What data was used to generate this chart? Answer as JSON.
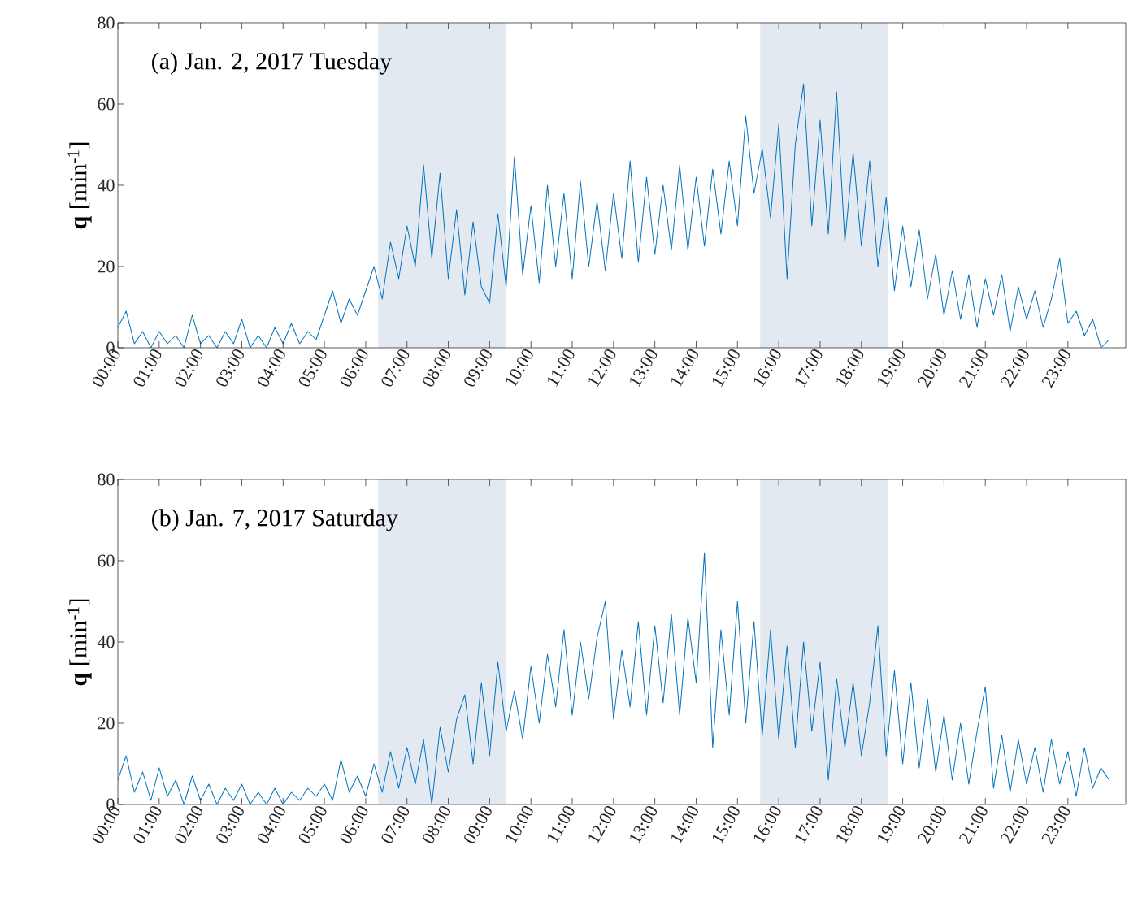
{
  "chart_data": [
    {
      "type": "line",
      "title": "(a) Jan. 2, 2017 Tuesday",
      "ylabel": "**q** [min$^{-1}$]",
      "xlim": [
        0,
        24.4
      ],
      "ylim": [
        0,
        80
      ],
      "yticks": [
        0,
        20,
        40,
        60,
        80
      ],
      "xticks": [
        {
          "value": 0,
          "label": "00:00"
        },
        {
          "value": 1,
          "label": "01:00"
        },
        {
          "value": 2,
          "label": "02:00"
        },
        {
          "value": 3,
          "label": "03:00"
        },
        {
          "value": 4,
          "label": "04:00"
        },
        {
          "value": 5,
          "label": "05:00"
        },
        {
          "value": 6,
          "label": "06:00"
        },
        {
          "value": 7,
          "label": "07:00"
        },
        {
          "value": 8,
          "label": "08:00"
        },
        {
          "value": 9,
          "label": "09:00"
        },
        {
          "value": 10,
          "label": "10:00"
        },
        {
          "value": 11,
          "label": "11:00"
        },
        {
          "value": 12,
          "label": "12:00"
        },
        {
          "value": 13,
          "label": "13:00"
        },
        {
          "value": 14,
          "label": "14:00"
        },
        {
          "value": 15,
          "label": "15:00"
        },
        {
          "value": 16,
          "label": "16:00"
        },
        {
          "value": 17,
          "label": "17:00"
        },
        {
          "value": 18,
          "label": "18:00"
        },
        {
          "value": 19,
          "label": "19:00"
        },
        {
          "value": 20,
          "label": "20:00"
        },
        {
          "value": 21,
          "label": "21:00"
        },
        {
          "value": 22,
          "label": "22:00"
        },
        {
          "value": 23,
          "label": "23:00"
        }
      ],
      "bands": [
        {
          "axis": "x",
          "from": 6.3,
          "to": 9.4,
          "color": "#e3e9f1"
        },
        {
          "axis": "x",
          "from": 15.55,
          "to": 18.65,
          "color": "#e3e9f1"
        }
      ],
      "x": [
        0,
        0.2,
        0.4,
        0.6,
        0.8,
        1,
        1.2,
        1.4,
        1.6,
        1.8,
        2,
        2.2,
        2.4,
        2.6,
        2.8,
        3,
        3.2,
        3.4,
        3.6,
        3.8,
        4,
        4.2,
        4.4,
        4.6,
        4.8,
        5,
        5.2,
        5.4,
        5.6,
        5.8,
        6,
        6.2,
        6.4,
        6.6,
        6.8,
        7,
        7.2,
        7.4,
        7.6,
        7.8,
        8,
        8.2,
        8.4,
        8.6,
        8.8,
        9,
        9.2,
        9.4,
        9.6,
        9.8,
        10,
        10.2,
        10.4,
        10.6,
        10.8,
        11,
        11.2,
        11.4,
        11.6,
        11.8,
        12,
        12.2,
        12.4,
        12.6,
        12.8,
        13,
        13.2,
        13.4,
        13.6,
        13.8,
        14,
        14.2,
        14.4,
        14.6,
        14.8,
        15,
        15.2,
        15.4,
        15.6,
        15.8,
        16,
        16.2,
        16.4,
        16.6,
        16.8,
        17,
        17.2,
        17.4,
        17.6,
        17.8,
        18,
        18.2,
        18.4,
        18.6,
        18.8,
        19,
        19.2,
        19.4,
        19.6,
        19.8,
        20,
        20.2,
        20.4,
        20.6,
        20.8,
        21,
        21.2,
        21.4,
        21.6,
        21.8,
        22,
        22.2,
        22.4,
        22.6,
        22.8,
        23,
        23.2,
        23.4,
        23.6,
        23.8,
        24
      ],
      "series": [
        {
          "color": "#0072bd",
          "values": [
            5,
            9,
            1,
            4,
            0,
            4,
            1,
            3,
            0,
            8,
            1,
            3,
            0,
            4,
            1,
            7,
            0,
            3,
            0,
            5,
            1,
            6,
            1,
            4,
            2,
            8,
            14,
            6,
            12,
            8,
            14,
            20,
            12,
            26,
            17,
            30,
            20,
            45,
            22,
            43,
            17,
            34,
            13,
            31,
            15,
            11,
            33,
            15,
            47,
            18,
            35,
            16,
            40,
            20,
            38,
            17,
            41,
            20,
            36,
            19,
            38,
            22,
            46,
            21,
            42,
            23,
            40,
            24,
            45,
            24,
            42,
            25,
            44,
            28,
            46,
            30,
            57,
            38,
            49,
            32,
            55,
            17,
            50,
            65,
            30,
            56,
            28,
            63,
            26,
            48,
            25,
            46,
            20,
            37,
            14,
            30,
            15,
            29,
            12,
            23,
            8,
            19,
            7,
            18,
            5,
            17,
            8,
            18,
            4,
            15,
            7,
            14,
            5,
            12,
            22,
            6,
            9,
            3,
            7,
            0,
            2
          ]
        }
      ]
    },
    {
      "type": "line",
      "title": "(b) Jan. 7, 2017 Saturday",
      "ylabel": "**q** [min$^{-1}$]",
      "xlim": [
        0,
        24.4
      ],
      "ylim": [
        0,
        80
      ],
      "yticks": [
        0,
        20,
        40,
        60,
        80
      ],
      "xticks": [
        {
          "value": 0,
          "label": "00:00"
        },
        {
          "value": 1,
          "label": "01:00"
        },
        {
          "value": 2,
          "label": "02:00"
        },
        {
          "value": 3,
          "label": "03:00"
        },
        {
          "value": 4,
          "label": "04:00"
        },
        {
          "value": 5,
          "label": "05:00"
        },
        {
          "value": 6,
          "label": "06:00"
        },
        {
          "value": 7,
          "label": "07:00"
        },
        {
          "value": 8,
          "label": "08:00"
        },
        {
          "value": 9,
          "label": "09:00"
        },
        {
          "value": 10,
          "label": "10:00"
        },
        {
          "value": 11,
          "label": "11:00"
        },
        {
          "value": 12,
          "label": "12:00"
        },
        {
          "value": 13,
          "label": "13:00"
        },
        {
          "value": 14,
          "label": "14:00"
        },
        {
          "value": 15,
          "label": "15:00"
        },
        {
          "value": 16,
          "label": "16:00"
        },
        {
          "value": 17,
          "label": "17:00"
        },
        {
          "value": 18,
          "label": "18:00"
        },
        {
          "value": 19,
          "label": "19:00"
        },
        {
          "value": 20,
          "label": "20:00"
        },
        {
          "value": 21,
          "label": "21:00"
        },
        {
          "value": 22,
          "label": "22:00"
        },
        {
          "value": 23,
          "label": "23:00"
        }
      ],
      "bands": [
        {
          "axis": "x",
          "from": 6.3,
          "to": 9.4,
          "color": "#e3e9f1"
        },
        {
          "axis": "x",
          "from": 15.55,
          "to": 18.65,
          "color": "#e3e9f1"
        }
      ],
      "x": [
        0,
        0.2,
        0.4,
        0.6,
        0.8,
        1,
        1.2,
        1.4,
        1.6,
        1.8,
        2,
        2.2,
        2.4,
        2.6,
        2.8,
        3,
        3.2,
        3.4,
        3.6,
        3.8,
        4,
        4.2,
        4.4,
        4.6,
        4.8,
        5,
        5.2,
        5.4,
        5.6,
        5.8,
        6,
        6.2,
        6.4,
        6.6,
        6.8,
        7,
        7.2,
        7.4,
        7.6,
        7.8,
        8,
        8.2,
        8.4,
        8.6,
        8.8,
        9,
        9.2,
        9.4,
        9.6,
        9.8,
        10,
        10.2,
        10.4,
        10.6,
        10.8,
        11,
        11.2,
        11.4,
        11.6,
        11.8,
        12,
        12.2,
        12.4,
        12.6,
        12.8,
        13,
        13.2,
        13.4,
        13.6,
        13.8,
        14,
        14.2,
        14.4,
        14.6,
        14.8,
        15,
        15.2,
        15.4,
        15.6,
        15.8,
        16,
        16.2,
        16.4,
        16.6,
        16.8,
        17,
        17.2,
        17.4,
        17.6,
        17.8,
        18,
        18.2,
        18.4,
        18.6,
        18.8,
        19,
        19.2,
        19.4,
        19.6,
        19.8,
        20,
        20.2,
        20.4,
        20.6,
        20.8,
        21,
        21.2,
        21.4,
        21.6,
        21.8,
        22,
        22.2,
        22.4,
        22.6,
        22.8,
        23,
        23.2,
        23.4,
        23.6,
        23.8,
        24
      ],
      "series": [
        {
          "color": "#0072bd",
          "values": [
            6,
            12,
            3,
            8,
            1,
            9,
            2,
            6,
            0,
            7,
            1,
            5,
            0,
            4,
            1,
            5,
            0,
            3,
            0,
            4,
            0,
            3,
            1,
            4,
            2,
            5,
            1,
            11,
            3,
            7,
            2,
            10,
            3,
            13,
            4,
            14,
            5,
            16,
            0,
            19,
            8,
            21,
            27,
            10,
            30,
            12,
            35,
            18,
            28,
            16,
            34,
            20,
            37,
            24,
            43,
            22,
            40,
            26,
            41,
            50,
            21,
            38,
            24,
            45,
            22,
            44,
            25,
            47,
            22,
            46,
            30,
            62,
            14,
            43,
            22,
            50,
            20,
            45,
            17,
            43,
            16,
            39,
            14,
            40,
            18,
            35,
            6,
            31,
            14,
            30,
            12,
            25,
            44,
            12,
            33,
            10,
            30,
            9,
            26,
            8,
            22,
            6,
            20,
            5,
            18,
            29,
            4,
            17,
            3,
            16,
            5,
            14,
            3,
            16,
            5,
            13,
            2,
            14,
            4,
            9,
            6
          ]
        }
      ]
    }
  ]
}
